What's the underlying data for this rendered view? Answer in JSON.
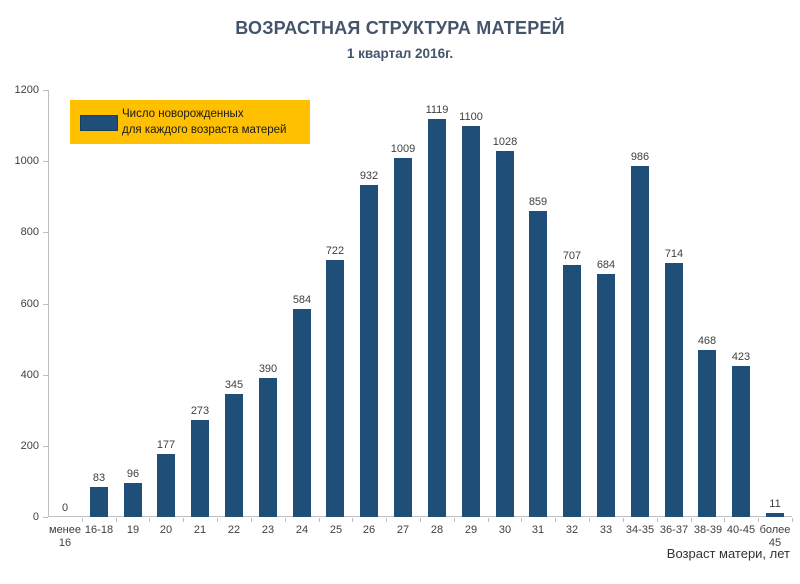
{
  "title": "ВОЗРАСТНАЯ СТРУКТУРА МАТЕРЕЙ",
  "subtitle": "1 квартал 2016г.",
  "legend": {
    "line1": "Число новорожденных",
    "line2": "для каждого возраста матерей",
    "bg_color": "#ffc000",
    "swatch_color": "#1f4e79"
  },
  "x_axis_title": "Возраст матери, лет",
  "colors": {
    "bar": "#1f4e79",
    "title_text": "#44546a",
    "label_text": "#404040",
    "axis_line": "#bfbfbf",
    "legend_bg": "#ffc000"
  },
  "chart_data": {
    "type": "bar",
    "title": "ВОЗРАСТНАЯ СТРУКТУРА МАТЕРЕЙ",
    "subtitle": "1 квартал 2016г.",
    "categories": [
      "менее 16",
      "16-18",
      "19",
      "20",
      "21",
      "22",
      "23",
      "24",
      "25",
      "26",
      "27",
      "28",
      "29",
      "30",
      "31",
      "32",
      "33",
      "34-35",
      "36-37",
      "38-39",
      "40-45",
      "более 45"
    ],
    "values": [
      0,
      83,
      96,
      177,
      273,
      345,
      390,
      584,
      722,
      932,
      1009,
      1119,
      1100,
      1028,
      859,
      707,
      684,
      986,
      714,
      468,
      423,
      11
    ],
    "xlabel": "Возраст матери, лет",
    "ylabel": "",
    "ylim": [
      0,
      1200
    ],
    "ytick_step": 200,
    "yticks": [
      0,
      200,
      400,
      600,
      800,
      1000,
      1200
    ],
    "legend_entries": [
      "Число новорожденных для каждого возраста матерей"
    ],
    "legend_position": "top-left",
    "grid": false,
    "bar_color": "#1f4e79",
    "value_labels_shown": true
  }
}
